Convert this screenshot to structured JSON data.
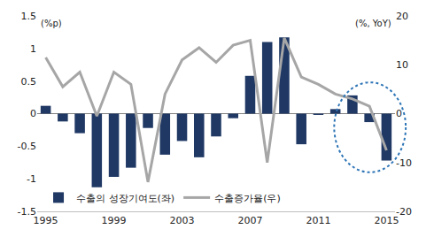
{
  "chart_data": {
    "type": "bar",
    "x": [
      1995,
      1996,
      1997,
      1998,
      1999,
      2000,
      2001,
      2002,
      2003,
      2004,
      2005,
      2006,
      2007,
      2008,
      2009,
      2010,
      2011,
      2012,
      2013,
      2014,
      2015
    ],
    "y_label": "(%p)",
    "y2_label": "(%, YoY)",
    "series": [
      {
        "name": "수출의 성장기여도(좌)",
        "type": "bar",
        "color": "#1f3864",
        "values": [
          0.12,
          -0.12,
          -0.3,
          -1.13,
          -0.97,
          -0.83,
          -0.22,
          -0.63,
          -0.42,
          -0.67,
          -0.35,
          -0.07,
          0.58,
          1.1,
          1.17,
          -0.47,
          -0.02,
          0.07,
          0.28,
          -0.13,
          -0.72
        ]
      },
      {
        "name": "수출증가율(우)",
        "type": "line",
        "axis": "y2",
        "color": "#a6a6a6",
        "values": [
          11.5,
          5.5,
          8.5,
          -0.5,
          8.5,
          6,
          -14,
          4,
          11,
          13.5,
          10.5,
          14,
          15,
          -10,
          15.5,
          7.5,
          6,
          4,
          3,
          1.5,
          -7.5
        ]
      }
    ],
    "xlim": [
      1994.5,
      2015.5
    ],
    "xticks": [
      1995,
      1999,
      2003,
      2007,
      2011,
      2015
    ],
    "ylim": [
      -1.5,
      1.5
    ],
    "yticks": [
      -1.5,
      -1,
      -0.5,
      0,
      0.5,
      1,
      1.5
    ],
    "y2lim": [
      -20,
      20
    ],
    "y2ticks": [
      -20,
      -10,
      0,
      10,
      20
    ],
    "legend": "lower left",
    "grid": false
  }
}
